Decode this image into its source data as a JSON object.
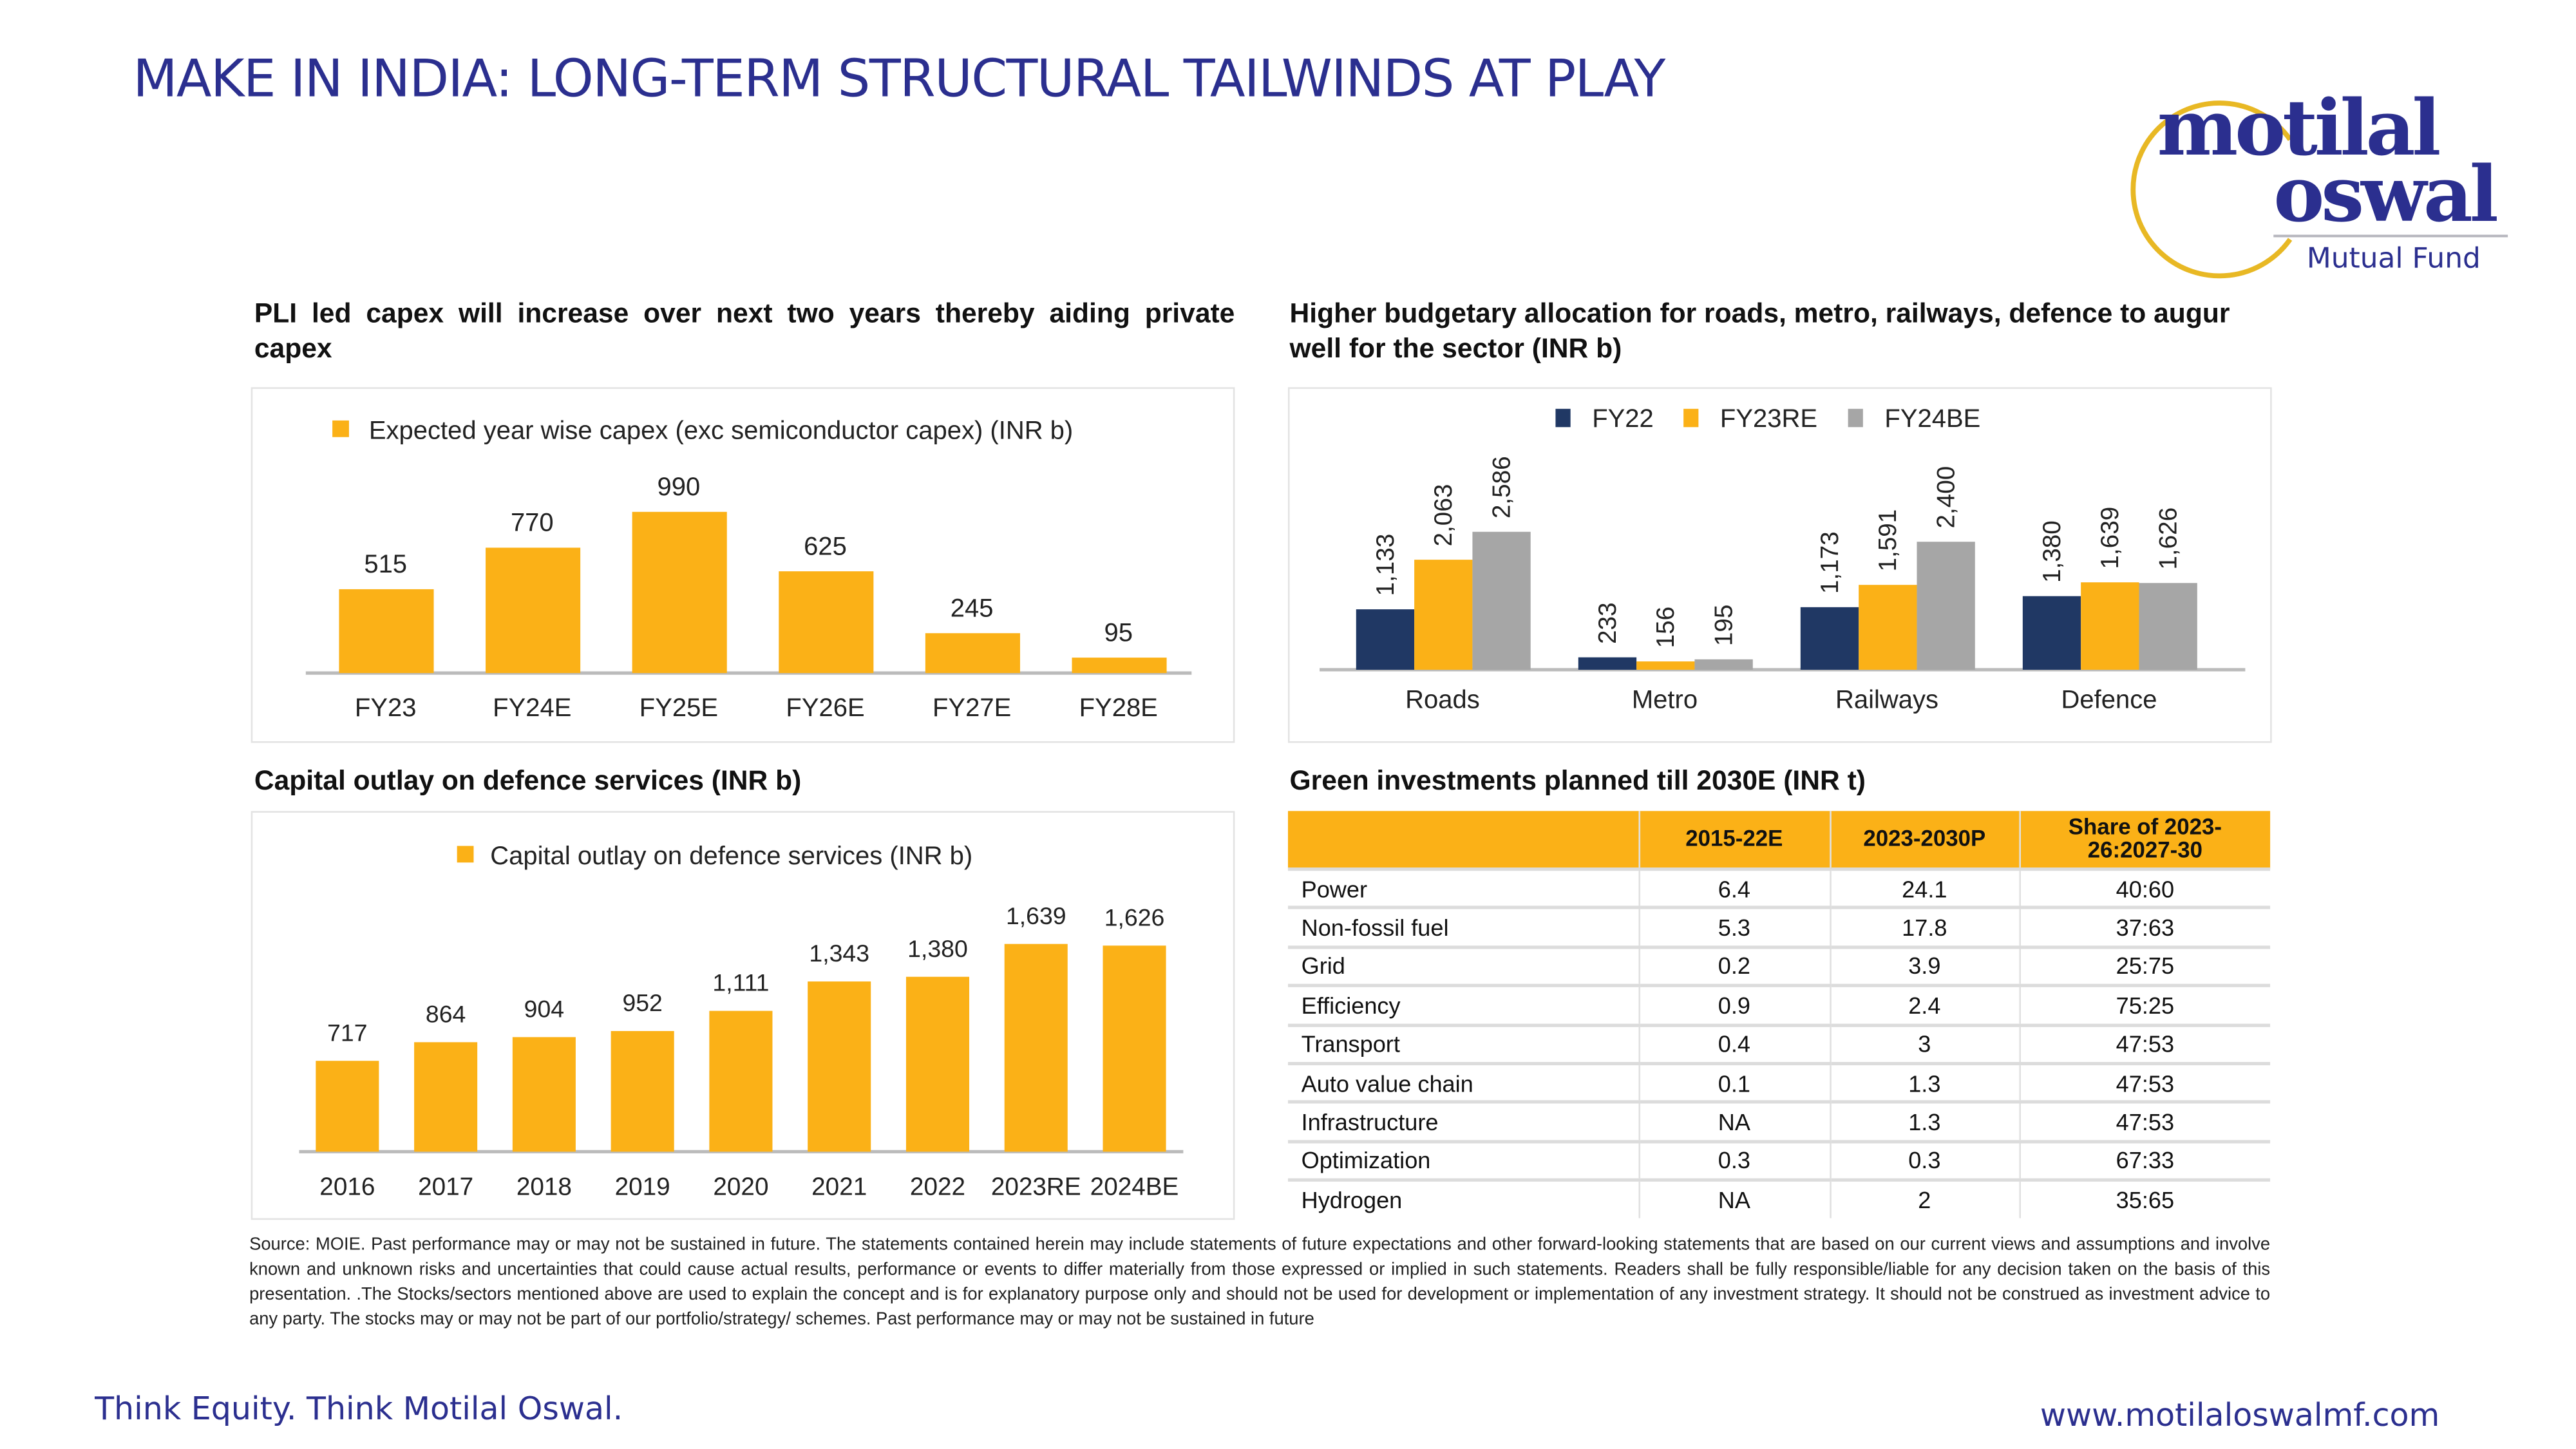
{
  "header": {
    "title": "MAKE IN INDIA: LONG-TERM STRUCTURAL TAILWINDS AT PLAY"
  },
  "logo": {
    "line1": "motilal",
    "line2": "oswal",
    "sub": "Mutual Fund"
  },
  "colors": {
    "navy": "#203864",
    "orange": "#fbb117",
    "gray": "#a6a6a6",
    "brand": "#2b2f8f"
  },
  "chart_data": [
    {
      "type": "bar",
      "title": "PLI led capex will increase over next two years thereby aiding private capex",
      "legend": "Expected year wise capex (exc semiconductor capex) (INR b)",
      "categories": [
        "FY23",
        "FY24E",
        "FY25E",
        "FY26E",
        "FY27E",
        "FY28E"
      ],
      "values": [
        515,
        770,
        990,
        625,
        245,
        95
      ],
      "labels": [
        "515",
        "770",
        "990",
        "625",
        "245",
        "95"
      ],
      "ylim": [
        0,
        1000
      ]
    },
    {
      "type": "bar",
      "title": "Higher budgetary allocation for roads, metro, railways, defence to augur well for the sector (INR b)",
      "categories": [
        "Roads",
        "Metro",
        "Railways",
        "Defence"
      ],
      "series": [
        {
          "name": "FY22",
          "values": [
            1133,
            233,
            1173,
            1380
          ],
          "labels": [
            "1,133",
            "233",
            "1,173",
            "1,380"
          ]
        },
        {
          "name": "FY23RE",
          "values": [
            2063,
            156,
            1591,
            1639
          ],
          "labels": [
            "2,063",
            "156",
            "1,591",
            "1,639"
          ]
        },
        {
          "name": "FY24BE",
          "values": [
            2586,
            195,
            2400,
            1626
          ],
          "labels": [
            "2,586",
            "195",
            "2,400",
            "1,626"
          ]
        }
      ],
      "ylim": [
        0,
        2600
      ]
    },
    {
      "type": "bar",
      "title": "Capital outlay on defence services (INR b)",
      "legend": "Capital outlay on defence services (INR b)",
      "categories": [
        "2016",
        "2017",
        "2018",
        "2019",
        "2020",
        "2021",
        "2022",
        "2023RE",
        "2024BE"
      ],
      "values": [
        717,
        864,
        904,
        952,
        1111,
        1343,
        1380,
        1639,
        1626
      ],
      "labels": [
        "717",
        "864",
        "904",
        "952",
        "1,111",
        "1,343",
        "1,380",
        "1,639",
        "1,626"
      ],
      "ylim": [
        0,
        1650
      ]
    },
    {
      "type": "table",
      "title": "Green investments planned till 2030E (INR t)",
      "columns": [
        "",
        "2015-22E",
        "2023-2030P",
        "Share of 2023-26:2027-30"
      ],
      "rows": [
        [
          "Power",
          "6.4",
          "24.1",
          "40:60"
        ],
        [
          "Non-fossil fuel",
          "5.3",
          "17.8",
          "37:63"
        ],
        [
          "Grid",
          "0.2",
          "3.9",
          "25:75"
        ],
        [
          "Efficiency",
          "0.9",
          "2.4",
          "75:25"
        ],
        [
          "Transport",
          "0.4",
          "3",
          "47:53"
        ],
        [
          "Auto value chain",
          "0.1",
          "1.3",
          "47:53"
        ],
        [
          "Infrastructure",
          "NA",
          "1.3",
          "47:53"
        ],
        [
          "Optimization",
          "0.3",
          "0.3",
          "67:33"
        ],
        [
          "Hydrogen",
          "NA",
          "2",
          "35:65"
        ]
      ]
    }
  ],
  "source": "Source: MOIE. Past performance may or may not be sustained in future. The statements contained herein may include statements of future expectations and other forward-looking statements that are based on our current views and assumptions and involve known and unknown risks and uncertainties that could cause actual results, performance or events to differ materially from those expressed or implied in such statements. Readers shall be fully responsible/liable for any decision taken on the basis of this presentation. .The Stocks/sectors mentioned above are used to explain the concept and is for explanatory purpose only and should not be used for development or implementation of any investment strategy. It should not be construed as investment advice to any party. The stocks may or may not be part of our portfolio/strategy/ schemes. Past performance may or may not be sustained in future",
  "footer": {
    "tagline": "Think Equity. Think Motilal Oswal.",
    "website": "www.motilaloswalmf.com"
  }
}
